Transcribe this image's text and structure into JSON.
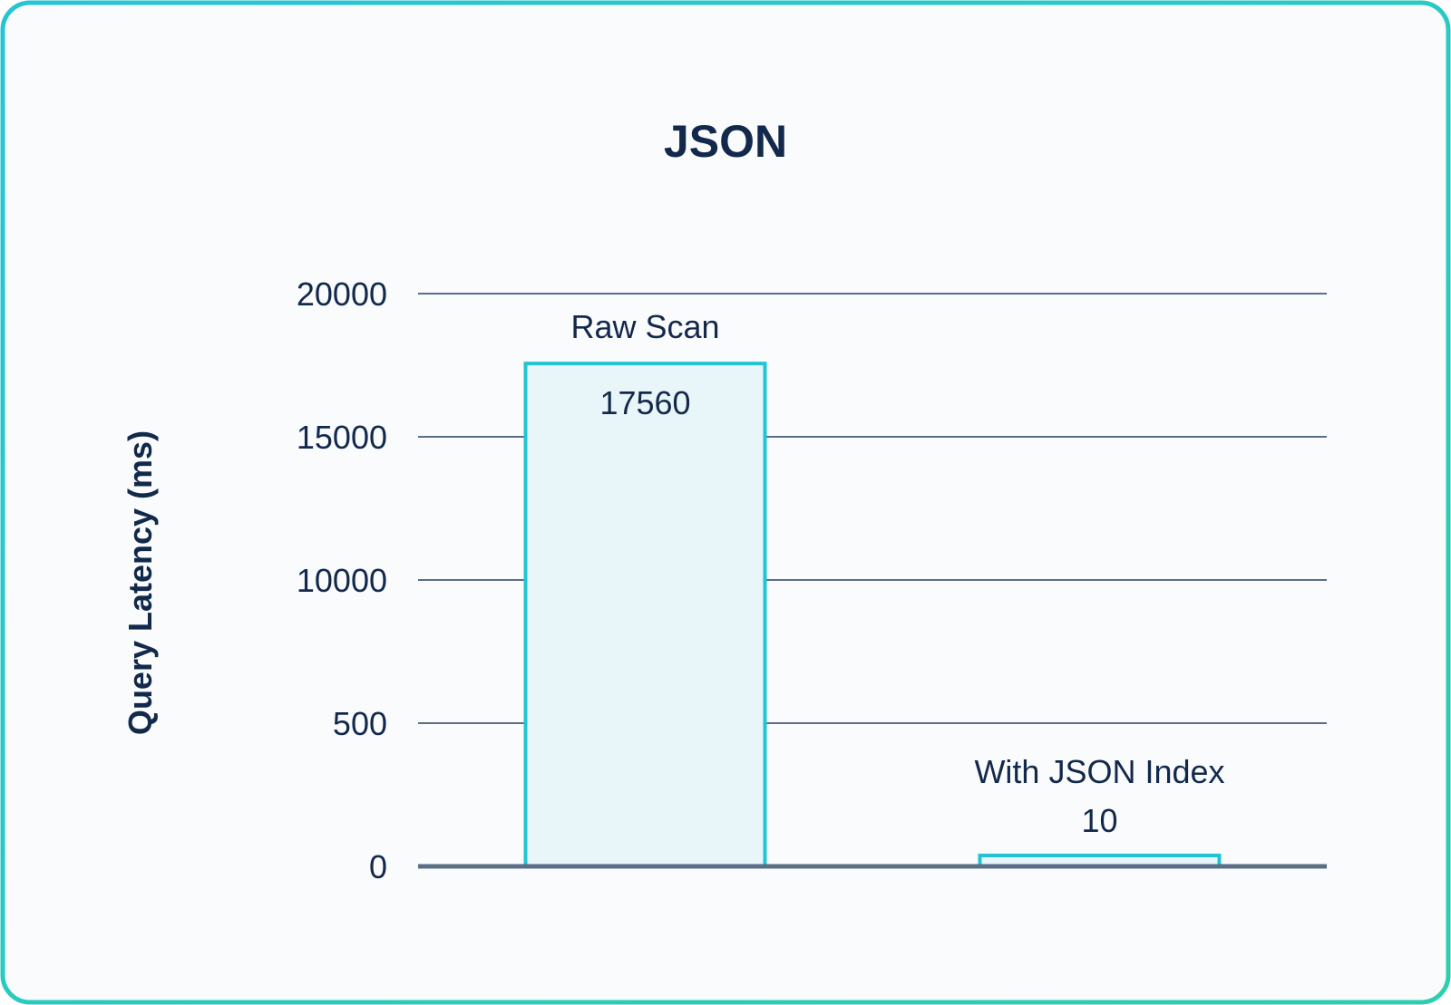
{
  "colors": {
    "frame_start": "#26c5d6",
    "frame_end": "#2ccfae",
    "panel_background": "#f9fbfd",
    "text": "#13294b",
    "gridline": "#5a6e88",
    "bar_fill": "#e8f6fa",
    "bar_stroke": "#22c4d4"
  },
  "chart_data": {
    "type": "bar",
    "title": "JSON",
    "ylabel": "Query Latency (ms)",
    "xlabel": "",
    "y_tick_labels": [
      "0",
      "500",
      "10000",
      "15000",
      "20000"
    ],
    "axis_note": "broken axis: tick labels read 0, 500, 10000, 15000, 20000 at evenly spaced gridlines",
    "grid": true,
    "categories": [
      "Raw Scan",
      "With JSON Index"
    ],
    "values": [
      17560,
      10
    ],
    "value_labels": [
      "17560",
      "10"
    ]
  }
}
